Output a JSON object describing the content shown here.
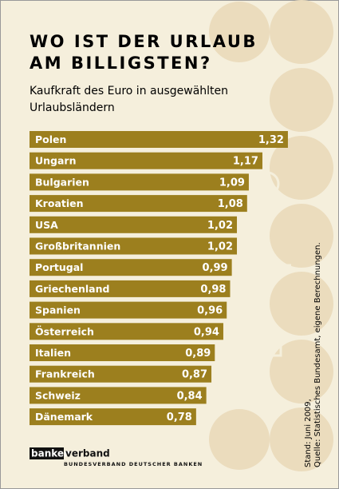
{
  "chart_data": {
    "type": "barh",
    "title_lines": [
      "WO IST DER URLAUB",
      "AM BILLIGSTEN?"
    ],
    "subtitle_lines": [
      "Kaufkraft des Euro in ausgewählten",
      "Urlaubsländern"
    ],
    "categories": [
      "Polen",
      "Ungarn",
      "Bulgarien",
      "Kroatien",
      "USA",
      "Großbritannien",
      "Portugal",
      "Griechenland",
      "Spanien",
      "Österreich",
      "Italien",
      "Frankreich",
      "Schweiz",
      "Dänemark"
    ],
    "values": [
      1.32,
      1.17,
      1.09,
      1.08,
      1.02,
      1.02,
      0.99,
      0.98,
      0.96,
      0.94,
      0.89,
      0.87,
      0.84,
      0.78
    ],
    "value_labels": [
      "1,32",
      "1,17",
      "1,09",
      "1,08",
      "1,02",
      "1,02",
      "0,99",
      "0,98",
      "0,96",
      "0,94",
      "0,89",
      "0,87",
      "0,84",
      "0,78"
    ],
    "color": "#9c7f1e",
    "xlim": [
      -0.2,
      1.4
    ],
    "source_lines": [
      "Stand: Juni 2009,",
      "Quelle: Statistisches Bundesamt, eigene Berechnungen."
    ],
    "logo": {
      "name_a": "banken",
      "name_b": "verband",
      "tagline": "BUNDESVERBAND DEUTSCHER BANKEN"
    }
  }
}
